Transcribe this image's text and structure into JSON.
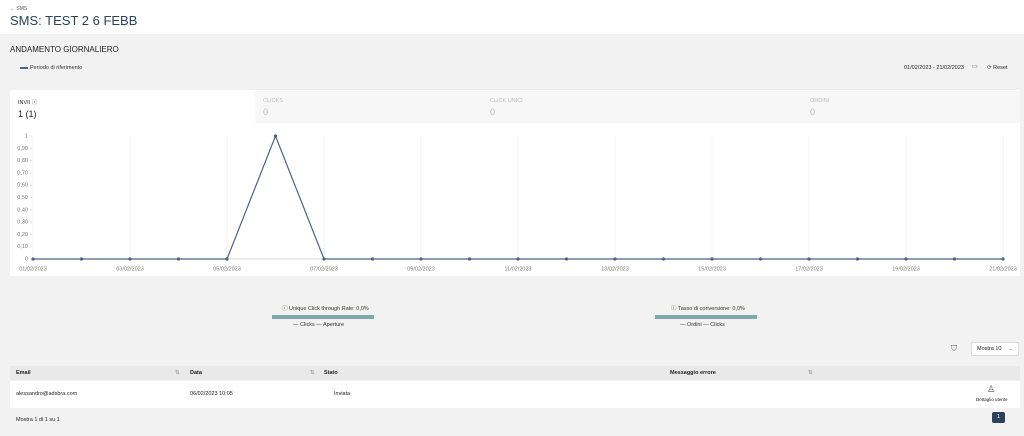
{
  "header": {
    "breadcrumb": "← SMS",
    "title": "SMS: TEST 2 6 FEBB"
  },
  "section": {
    "title": "ANDAMENTO GIORNALIERO",
    "date_range": "01/02/2023 - 21/02/2023",
    "reset": "Reset"
  },
  "tabs": [
    {
      "label": "INVII",
      "value": "1 (1)"
    },
    {
      "label": "CLICKS",
      "value": "0"
    },
    {
      "label": "CLICK UNICI",
      "value": "0"
    },
    {
      "label": "ORDINI",
      "value": "0"
    }
  ],
  "chart_data": {
    "type": "line",
    "categories": [
      "01/02/2023",
      null,
      "03/02/2023",
      null,
      "05/02/2023",
      null,
      "07/02/2023",
      null,
      "09/02/2023",
      null,
      "11/02/2023",
      null,
      "13/02/2023",
      null,
      "15/02/2023",
      null,
      "17/02/2023",
      null,
      "19/02/2023",
      null,
      "21/02/2023"
    ],
    "series": [
      {
        "name": "Periodo di riferimento",
        "color": "#4a6380",
        "values": [
          0,
          0,
          0,
          0,
          0,
          1,
          0,
          0,
          0,
          0,
          0,
          0,
          0,
          0,
          0,
          0,
          0,
          0,
          0,
          0,
          0
        ]
      }
    ],
    "ylim": [
      0,
      1
    ],
    "yticks": [
      0,
      {
        "value": 0.1,
        "label": "0,10"
      },
      {
        "value": 0.2,
        "label": "0,20"
      },
      {
        "value": 0.3,
        "label": "0,30"
      },
      {
        "value": 0.4,
        "label": "0,40"
      },
      {
        "value": 0.5,
        "label": "0,50"
      },
      {
        "value": 0.6,
        "label": "0,60"
      },
      {
        "value": 0.7,
        "label": "0,70"
      },
      {
        "value": 0.8,
        "label": "0,80"
      },
      {
        "value": 0.9,
        "label": "0,90"
      },
      1
    ],
    "grid": true
  },
  "stats": [
    {
      "label": "Unique Click through Rate: 0,0%",
      "legend": [
        "Clicks",
        "Aperture"
      ]
    },
    {
      "label": "Tasso di conversione: 0,0%",
      "legend": [
        "Ordini",
        "Clicks"
      ]
    }
  ],
  "table": {
    "page_size": "Mostra 10",
    "columns": [
      "Email",
      "Data",
      "Stato",
      "Messaggio errore"
    ],
    "rows": [
      [
        "alessandro@adsbra.com",
        "06/02/2023 10:05",
        "Inviata"
      ]
    ],
    "action": "Dettaglio utente",
    "footer": "Mostra 1 di 1 su 1",
    "page": "1"
  }
}
